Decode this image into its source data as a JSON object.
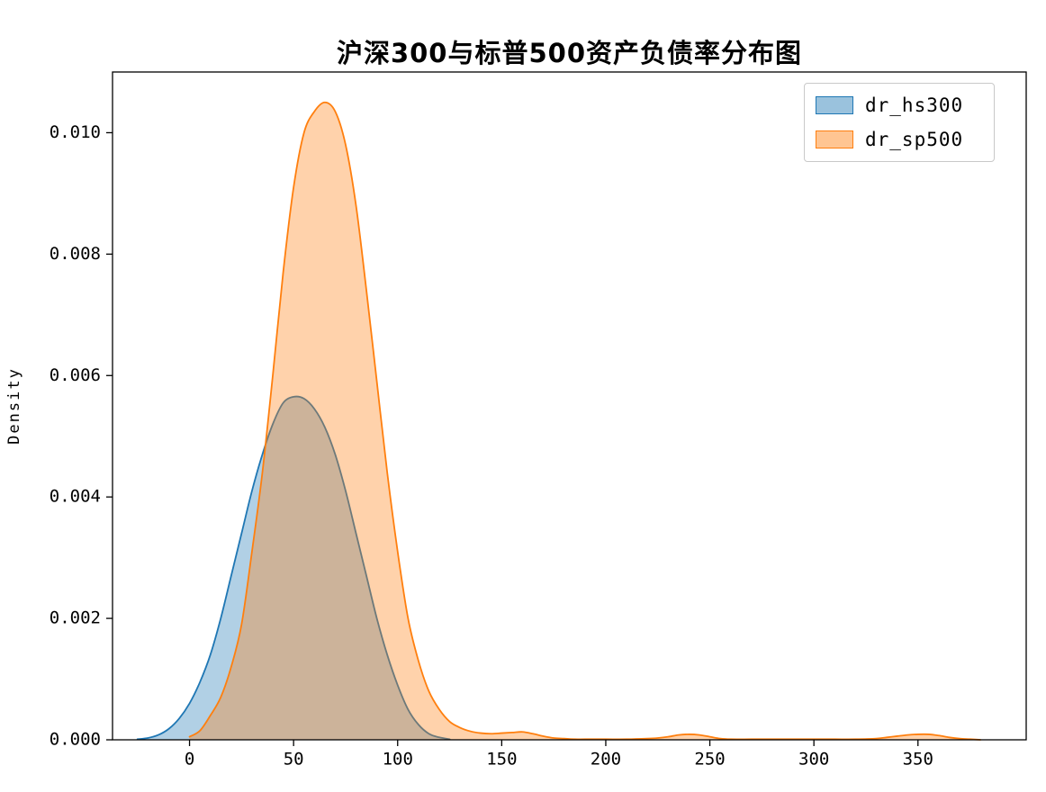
{
  "chart_data": {
    "type": "area",
    "title": "沪深300与标普500资产负债率分布图",
    "xlabel": "",
    "ylabel": "Density",
    "xlim": [
      -37,
      402
    ],
    "ylim": [
      0,
      0.011
    ],
    "grid": false,
    "legend_position": "upper right",
    "xticks": {
      "values": [
        0,
        50,
        100,
        150,
        200,
        250,
        300,
        350
      ],
      "labels": [
        "0",
        "50",
        "100",
        "150",
        "200",
        "250",
        "300",
        "350"
      ]
    },
    "yticks": {
      "values": [
        0,
        0.002,
        0.004,
        0.006,
        0.008,
        0.01
      ],
      "labels": [
        "0.000",
        "0.002",
        "0.004",
        "0.006",
        "0.008",
        "0.010"
      ]
    },
    "series": [
      {
        "name": "dr_hs300",
        "color": "#1f77b4",
        "fill_opacity": 0.35,
        "x": [
          -25,
          -20,
          -15,
          -10,
          -5,
          0,
          5,
          10,
          15,
          20,
          25,
          30,
          35,
          40,
          45,
          50,
          55,
          60,
          65,
          70,
          75,
          80,
          85,
          90,
          95,
          100,
          105,
          110,
          115,
          120,
          125
        ],
        "y": [
          1e-05,
          3e-05,
          8e-05,
          0.00018,
          0.00035,
          0.0006,
          0.00095,
          0.0014,
          0.002,
          0.0027,
          0.0034,
          0.0041,
          0.0047,
          0.0052,
          0.00555,
          0.00565,
          0.00562,
          0.00545,
          0.00515,
          0.0047,
          0.0041,
          0.0034,
          0.0027,
          0.002,
          0.0014,
          0.0009,
          0.0005,
          0.00025,
          0.0001,
          4e-05,
          1e-05
        ]
      },
      {
        "name": "dr_sp500",
        "color": "#ff7f0e",
        "fill_opacity": 0.35,
        "x": [
          0,
          5,
          10,
          15,
          20,
          25,
          30,
          35,
          40,
          45,
          50,
          55,
          60,
          65,
          70,
          75,
          80,
          85,
          90,
          95,
          100,
          105,
          110,
          115,
          120,
          125,
          130,
          135,
          140,
          145,
          150,
          155,
          160,
          165,
          170,
          175,
          180,
          185,
          190,
          200,
          210,
          220,
          225,
          230,
          235,
          240,
          245,
          250,
          255,
          260,
          270,
          280,
          290,
          300,
          310,
          320,
          330,
          335,
          340,
          345,
          350,
          355,
          360,
          365,
          370,
          375,
          380
        ],
        "y": [
          5e-05,
          0.00015,
          0.0004,
          0.0007,
          0.0012,
          0.0019,
          0.0031,
          0.0044,
          0.006,
          0.0077,
          0.0091,
          0.01,
          0.01035,
          0.0105,
          0.01035,
          0.0098,
          0.0088,
          0.0074,
          0.0059,
          0.0044,
          0.0031,
          0.002,
          0.0013,
          0.0008,
          0.0005,
          0.0003,
          0.0002,
          0.00014,
          0.00011,
          0.0001,
          0.00011,
          0.00012,
          0.00013,
          0.0001,
          6e-05,
          3e-05,
          2e-05,
          1e-05,
          1e-05,
          1e-05,
          1e-05,
          2e-05,
          3e-05,
          5e-05,
          8e-05,
          9e-05,
          8e-05,
          5e-05,
          2e-05,
          1e-05,
          1e-05,
          1e-05,
          1e-05,
          1e-05,
          1e-05,
          1e-05,
          2e-05,
          4e-05,
          6e-05,
          8e-05,
          9e-05,
          9e-05,
          7e-05,
          4e-05,
          2e-05,
          1e-05,
          0
        ]
      }
    ]
  }
}
